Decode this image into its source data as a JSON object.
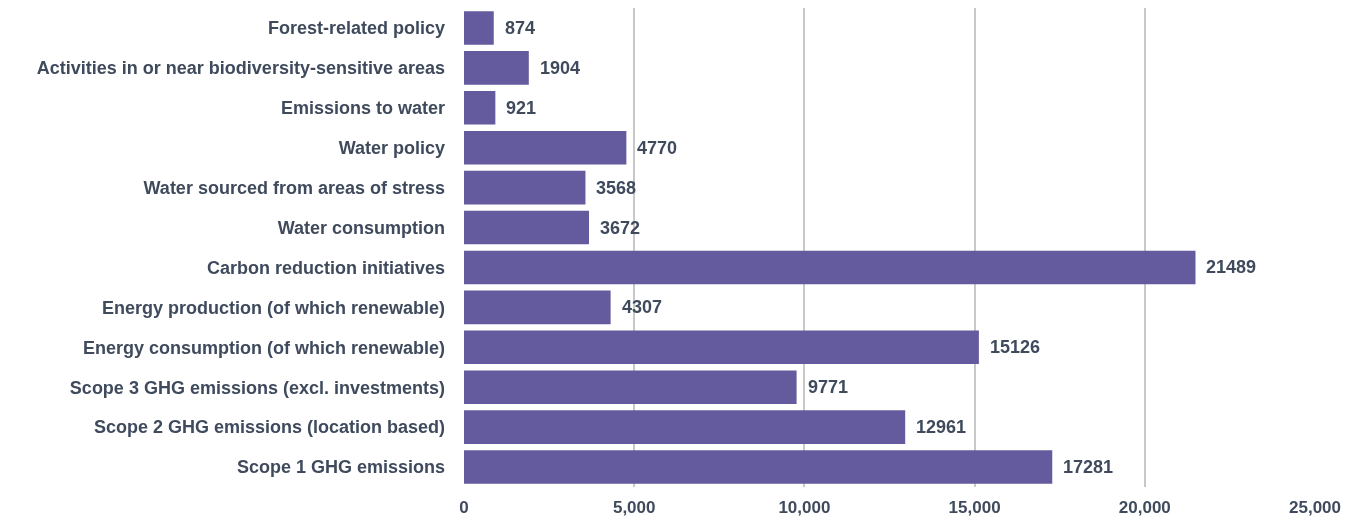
{
  "chart_data": {
    "type": "bar",
    "orientation": "horizontal",
    "categories": [
      "Forest-related policy",
      "Activities in or near biodiversity-sensitive areas",
      "Emissions to water",
      "Water policy",
      "Water sourced from areas of stress",
      "Water consumption",
      "Carbon reduction initiatives",
      "Energy production (of which renewable)",
      "Energy consumption (of which renewable)",
      "Scope 3 GHG emissions (excl. investments)",
      "Scope 2 GHG emissions (location based)",
      "Scope 1 GHG emissions"
    ],
    "values": [
      874,
      1904,
      921,
      4770,
      3568,
      3672,
      21489,
      4307,
      15126,
      9771,
      12961,
      17281
    ],
    "color": "#635b9d",
    "xlim": [
      0,
      25000
    ],
    "xticks": [
      0,
      {
        "value": 5000,
        "label": "5,000"
      },
      {
        "value": 10000,
        "label": "10,000"
      },
      {
        "value": 15000,
        "label": "15,000"
      },
      {
        "value": 20000,
        "label": "20,000"
      },
      {
        "value": 25000,
        "label": "25,000"
      }
    ],
    "data_labels": true,
    "grid": "x"
  }
}
